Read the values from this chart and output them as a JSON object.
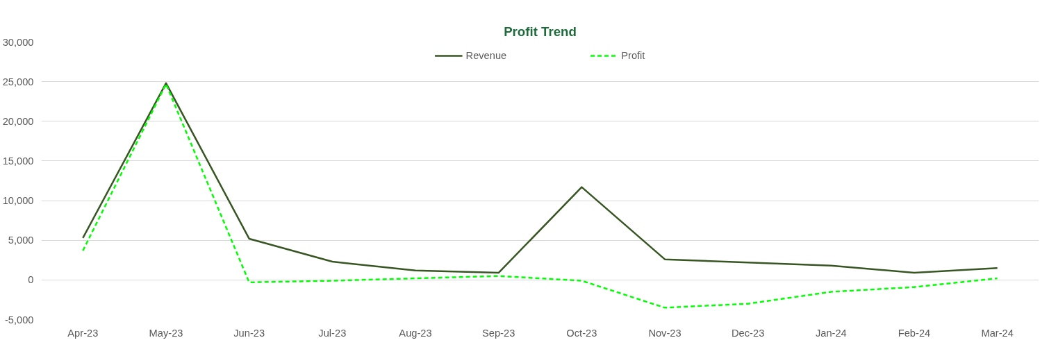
{
  "chart_data": {
    "type": "line",
    "title": "Profit Trend",
    "categories": [
      "Apr-23",
      "May-23",
      "Jun-23",
      "Jul-23",
      "Aug-23",
      "Sep-23",
      "Oct-23",
      "Nov-23",
      "Dec-23",
      "Jan-24",
      "Feb-24",
      "Mar-24"
    ],
    "series": [
      {
        "name": "Revenue",
        "color": "#375623",
        "line_style": "solid",
        "values": [
          5300,
          24800,
          5200,
          2300,
          1200,
          900,
          11700,
          2600,
          2200,
          1800,
          900,
          1500
        ]
      },
      {
        "name": "Profit",
        "color": "#00ff00",
        "line_style": "dashed",
        "values": [
          3700,
          24700,
          -300,
          -100,
          200,
          500,
          -100,
          -3500,
          -3000,
          -1500,
          -900,
          200
        ]
      }
    ],
    "ylim": [
      -5000,
      30000
    ],
    "yticks": [
      {
        "value": -5000,
        "label": "-5,000"
      },
      {
        "value": 0,
        "label": "0"
      },
      {
        "value": 5000,
        "label": "5,000"
      },
      {
        "value": 10000,
        "label": "10,000"
      },
      {
        "value": 15000,
        "label": "15,000"
      },
      {
        "value": 20000,
        "label": "20,000"
      },
      {
        "value": 25000,
        "label": "25,000"
      },
      {
        "value": 30000,
        "label": "30,000"
      }
    ],
    "grid": "y",
    "legend": "top",
    "marker": "none"
  }
}
